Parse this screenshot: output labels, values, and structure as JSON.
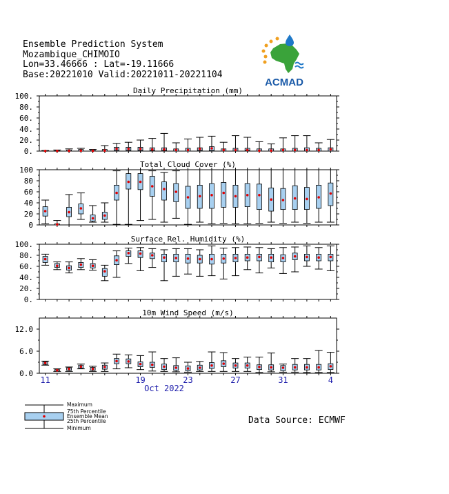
{
  "header": {
    "title": "Ensemble Prediction System",
    "location": "Mozambique_CHIMOIO",
    "coords": "Lon=33.46666 : Lat=-19.11666",
    "base": "Base:20221010 Valid:20221011-20221104"
  },
  "logo": {
    "text": "ACMAD",
    "colors": {
      "africa": "#3aa33a",
      "drop": "#1e78c8",
      "sun": "#f0a020",
      "text": "#1a5aa8"
    }
  },
  "source": "Data Source: ECMWF",
  "legend": {
    "maximum": "Maximum",
    "p75": "75th Percentile",
    "mean": "Ensemble Mean",
    "p25": "25th Percentile",
    "minimum": "Minimum"
  },
  "colors": {
    "box": "#a8d0f0",
    "mean": "#e00000",
    "axis_labels": "#1a1aaa"
  },
  "chart_data": [
    {
      "type": "box",
      "title": "Daily Precipitation (mm)",
      "ylim": [
        0,
        100
      ],
      "yticks": [
        "0.",
        "20.",
        "40.",
        "60.",
        "80.",
        "100."
      ],
      "ytick_values": [
        0,
        20,
        40,
        60,
        80,
        100
      ],
      "min": [
        0,
        0,
        0,
        0,
        0,
        0,
        0,
        0,
        0,
        0,
        0,
        0,
        0,
        0,
        0,
        0,
        0,
        0,
        0,
        0,
        0,
        0,
        0,
        0,
        0
      ],
      "q1": [
        0,
        0,
        0,
        0,
        0,
        0,
        1,
        1,
        1,
        1,
        1,
        0,
        0,
        1,
        1,
        0,
        0,
        1,
        0,
        0,
        0,
        0,
        0,
        0,
        0
      ],
      "mean": [
        0.3,
        0.3,
        0.5,
        0.8,
        0.5,
        1,
        4,
        4,
        4,
        3,
        3,
        2,
        2,
        4,
        5,
        2,
        2,
        2,
        1,
        1,
        2,
        2,
        2,
        2,
        3
      ],
      "q3": [
        1,
        1,
        2,
        3,
        2,
        3,
        7,
        7,
        7,
        6,
        6,
        4,
        5,
        6,
        8,
        4,
        5,
        5,
        4,
        4,
        4,
        5,
        6,
        5,
        6
      ],
      "max": [
        1,
        2,
        4,
        5,
        3,
        10,
        14,
        16,
        20,
        23,
        32,
        15,
        22,
        25,
        27,
        16,
        28,
        25,
        17,
        13,
        24,
        28,
        28,
        15,
        21
      ]
    },
    {
      "type": "box",
      "title": "Total Cloud Cover (%)",
      "ylim": [
        0,
        100
      ],
      "yticks": [
        "0",
        "20",
        "40",
        "60",
        "80",
        "100"
      ],
      "ytick_values": [
        0,
        20,
        40,
        60,
        80,
        100
      ],
      "min": [
        2,
        0,
        0,
        10,
        5,
        5,
        1,
        1,
        8,
        10,
        5,
        12,
        1,
        5,
        2,
        3,
        2,
        2,
        3,
        5,
        3,
        5,
        3,
        5,
        5
      ],
      "q1": [
        16,
        0,
        15,
        20,
        7,
        10,
        45,
        65,
        64,
        52,
        45,
        42,
        30,
        30,
        30,
        32,
        32,
        33,
        28,
        25,
        28,
        28,
        28,
        30,
        35
      ],
      "mean": [
        25,
        1,
        23,
        30,
        12,
        17,
        58,
        78,
        78,
        70,
        65,
        60,
        50,
        52,
        54,
        58,
        52,
        54,
        54,
        46,
        45,
        48,
        47,
        50,
        57
      ],
      "q3": [
        33,
        2,
        32,
        38,
        18,
        23,
        72,
        93,
        93,
        88,
        78,
        75,
        70,
        72,
        75,
        77,
        72,
        75,
        74,
        67,
        66,
        71,
        68,
        72,
        76
      ],
      "max": [
        45,
        8,
        55,
        58,
        35,
        40,
        98,
        100,
        100,
        98,
        95,
        98,
        100,
        100,
        100,
        100,
        100,
        100,
        100,
        100,
        100,
        100,
        100,
        100,
        100
      ]
    },
    {
      "type": "box",
      "title": "Surface Rel. Humidity (%)",
      "ylim": [
        0,
        100
      ],
      "yticks": [
        "0.",
        "20.",
        "40.",
        "60.",
        "80.",
        "100."
      ],
      "ytick_values": [
        0,
        20,
        40,
        60,
        80,
        100
      ],
      "min": [
        62,
        54,
        48,
        54,
        53,
        34,
        40,
        65,
        52,
        58,
        34,
        42,
        46,
        42,
        43,
        37,
        43,
        54,
        48,
        57,
        47,
        50,
        60,
        55,
        52
      ],
      "q1": [
        67,
        58,
        53,
        58,
        57,
        42,
        63,
        78,
        76,
        74,
        68,
        68,
        66,
        66,
        64,
        66,
        68,
        70,
        70,
        68,
        68,
        72,
        70,
        70,
        70
      ],
      "mean": [
        73,
        61,
        57,
        63,
        61,
        51,
        71,
        84,
        83,
        80,
        76,
        75,
        74,
        73,
        73,
        74,
        75,
        76,
        77,
        76,
        75,
        78,
        77,
        76,
        77
      ],
      "q3": [
        78,
        65,
        61,
        67,
        65,
        56,
        79,
        88,
        88,
        84,
        82,
        82,
        82,
        80,
        82,
        82,
        82,
        82,
        82,
        82,
        81,
        84,
        82,
        82,
        82
      ],
      "max": [
        82,
        68,
        68,
        74,
        72,
        62,
        88,
        93,
        94,
        92,
        90,
        92,
        92,
        90,
        97,
        93,
        94,
        95,
        94,
        92,
        94,
        95,
        97,
        94,
        97
      ]
    },
    {
      "type": "box",
      "title": "10m Wind Speed (m/s)",
      "ylim": [
        0,
        15
      ],
      "yticks": [
        "0.0",
        "6.0",
        "12.0"
      ],
      "ytick_values": [
        0,
        6,
        12
      ],
      "min": [
        2.2,
        0.5,
        0.5,
        1.2,
        0.5,
        0.5,
        1.2,
        1.5,
        1.0,
        0.6,
        0.5,
        0.4,
        0.3,
        0.5,
        0.5,
        0.5,
        0.5,
        0.5,
        0.2,
        0.4,
        0.3,
        0.3,
        0.2,
        0.2,
        0.2
      ],
      "q1": [
        2.4,
        0.6,
        0.8,
        1.4,
        0.8,
        1.1,
        2.6,
        2.6,
        1.8,
        1.6,
        1.0,
        0.8,
        0.7,
        0.9,
        1.3,
        1.8,
        1.4,
        1.4,
        1.0,
        0.9,
        0.7,
        0.9,
        0.9,
        0.9,
        1.0
      ],
      "mean": [
        2.8,
        0.8,
        1.2,
        1.8,
        1.2,
        1.7,
        3.3,
        3.2,
        2.5,
        2.3,
        1.8,
        1.5,
        1.3,
        1.5,
        2.1,
        2.6,
        2.1,
        2.1,
        1.7,
        1.6,
        1.5,
        1.6,
        1.6,
        1.6,
        1.9
      ],
      "q3": [
        3.1,
        1.0,
        1.5,
        2.2,
        1.6,
        2.2,
        4.0,
        3.9,
        3.1,
        3.0,
        2.5,
        2.1,
        2.0,
        2.2,
        2.9,
        3.4,
        2.8,
        2.8,
        2.3,
        2.3,
        2.1,
        2.4,
        2.4,
        2.4,
        2.6
      ],
      "max": [
        3.3,
        1.2,
        1.7,
        2.5,
        1.9,
        2.8,
        5.2,
        5.0,
        4.8,
        5.8,
        4.0,
        4.2,
        3.0,
        3.2,
        5.8,
        5.6,
        4.0,
        4.4,
        4.4,
        5.5,
        2.5,
        4.0,
        4.0,
        6.2,
        5.7
      ]
    }
  ],
  "xaxis": {
    "tick_labels": [
      "11",
      "19",
      "23",
      "27",
      "31",
      "4"
    ],
    "tick_day_index": [
      0,
      8,
      12,
      16,
      20,
      24
    ],
    "month_label": "Oct 2022",
    "days": 25
  }
}
